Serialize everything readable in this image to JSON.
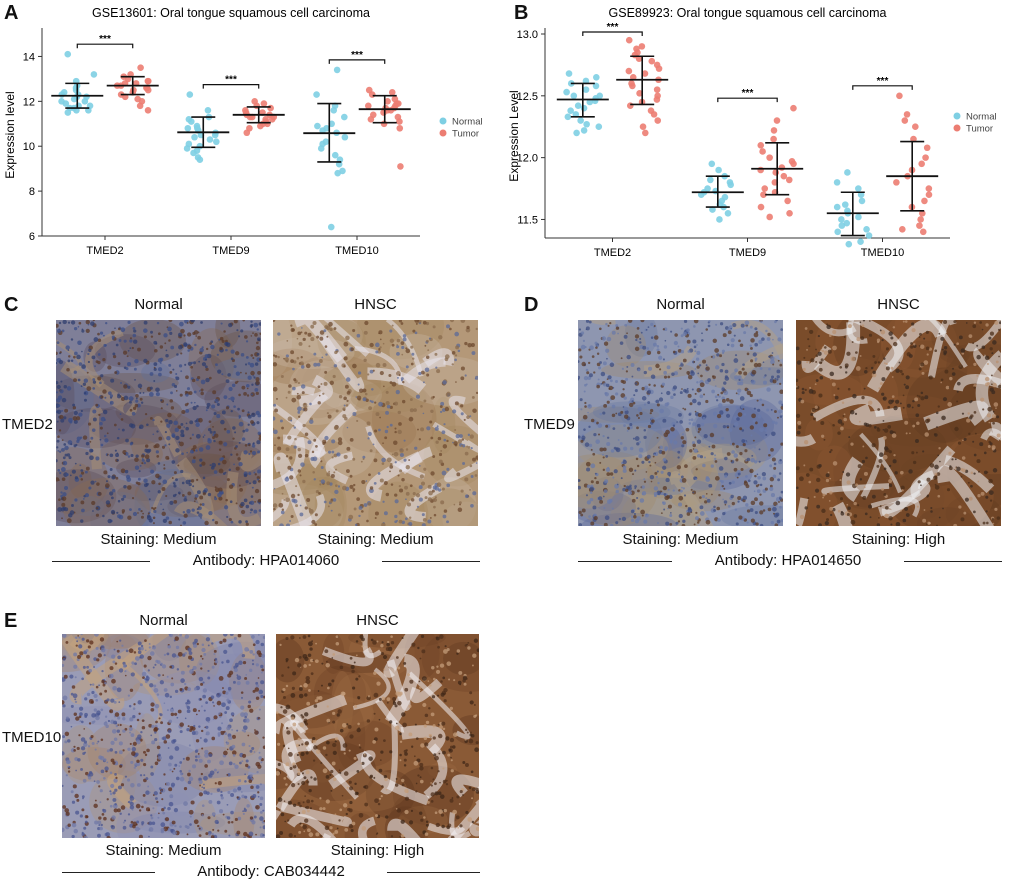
{
  "panels": {
    "A": {
      "letter": "A"
    },
    "B": {
      "letter": "B"
    },
    "C": {
      "letter": "C",
      "row_label": "TMED2",
      "col1": "Normal",
      "col2": "HNSC",
      "stain1": "Staining: Medium",
      "stain2": "Staining: Medium",
      "antibody": "Antibody: HPA014060"
    },
    "D": {
      "letter": "D",
      "row_label": "TMED9",
      "col1": "Normal",
      "col2": "HNSC",
      "stain1": "Staining: Medium",
      "stain2": "Staining: High",
      "antibody": "Antibody: HPA014650"
    },
    "E": {
      "letter": "E",
      "row_label": "TMED10",
      "col1": "Normal",
      "col2": "HNSC",
      "stain1": "Staining: Medium",
      "stain2": "Staining: High",
      "antibody": "Antibody: CAB034442"
    }
  },
  "colors": {
    "normal": "#7ecfe3",
    "tumor": "#ec7d72",
    "normal_tissue": "#8f96b4",
    "hnsc_tissue": "#8e5a33"
  },
  "chart_data": [
    {
      "type": "scatter",
      "title": "GSE13601: Oral tongue squamous cell carcinoma",
      "ylabel": "Expression level",
      "xlabel": "",
      "ylim": [
        6,
        15
      ],
      "yticks": [
        6,
        8,
        10,
        12,
        14
      ],
      "categories": [
        "TMED2",
        "TMED9",
        "TMED10"
      ],
      "legend": {
        "placement": "right",
        "entries": [
          "Normal",
          "Tumor"
        ]
      },
      "significance": [
        "***",
        "***",
        "***"
      ],
      "series": [
        {
          "name": "Normal",
          "color": "#7ecfe3",
          "mean": [
            12.25,
            10.62,
            10.58
          ],
          "sd_low": [
            11.7,
            9.95,
            9.3
          ],
          "sd_high": [
            12.8,
            11.3,
            11.9
          ],
          "points": [
            [
              14.1,
              13.2,
              12.9,
              12.7,
              12.6,
              12.5,
              12.4,
              12.3,
              12.3,
              12.2,
              12.2,
              12.1,
              12.0,
              12.0,
              11.9,
              11.8,
              11.8,
              11.7,
              11.7,
              11.6,
              11.6,
              11.5
            ],
            [
              12.3,
              11.6,
              11.3,
              11.2,
              11.1,
              10.9,
              10.8,
              10.8,
              10.7,
              10.6,
              10.5,
              10.5,
              10.4,
              10.3,
              10.2,
              10.1,
              10.0,
              9.9,
              9.8,
              9.7,
              9.5,
              9.4
            ],
            [
              13.4,
              12.3,
              11.8,
              11.6,
              11.3,
              11.0,
              10.9,
              10.8,
              10.7,
              10.6,
              10.4,
              10.2,
              10.1,
              9.9,
              9.6,
              9.4,
              9.2,
              8.9,
              8.8,
              6.4
            ]
          ]
        },
        {
          "name": "Tumor",
          "color": "#ec7d72",
          "mean": [
            12.7,
            11.4,
            11.65
          ],
          "sd_low": [
            12.3,
            11.05,
            11.05
          ],
          "sd_high": [
            13.1,
            11.75,
            12.25
          ],
          "points": [
            [
              13.5,
              13.2,
              13.1,
              13.0,
              12.9,
              12.9,
              12.8,
              12.8,
              12.7,
              12.7,
              12.6,
              12.6,
              12.5,
              12.5,
              12.4,
              12.3,
              12.2,
              12.1,
              12.0,
              11.8,
              11.6
            ],
            [
              12.0,
              11.9,
              11.8,
              11.7,
              11.6,
              11.5,
              11.5,
              11.4,
              11.4,
              11.3,
              11.3,
              11.3,
              11.2,
              11.2,
              11.1,
              11.0,
              11.0,
              10.9,
              10.8,
              10.6
            ],
            [
              12.5,
              12.4,
              12.3,
              12.1,
              12.0,
              11.9,
              11.9,
              11.8,
              11.8,
              11.7,
              11.7,
              11.6,
              11.6,
              11.5,
              11.4,
              11.3,
              11.2,
              11.1,
              11.0,
              10.8,
              9.1
            ]
          ]
        }
      ]
    },
    {
      "type": "scatter",
      "title": "GSE89923: Oral tongue squamous cell carcinoma",
      "ylabel": "Expression Level",
      "xlabel": "",
      "ylim": [
        11.35,
        13.0
      ],
      "yticks": [
        11.5,
        12.0,
        12.5,
        13.0
      ],
      "categories": [
        "TMED2",
        "TMED9",
        "TMED10"
      ],
      "legend": {
        "placement": "right",
        "entries": [
          "Normal",
          "Tumor"
        ]
      },
      "significance": [
        "***",
        "***",
        "***"
      ],
      "series": [
        {
          "name": "Normal",
          "color": "#7ecfe3",
          "mean": [
            12.47,
            11.72,
            11.55
          ],
          "sd_low": [
            12.33,
            11.6,
            11.37
          ],
          "sd_high": [
            12.6,
            11.85,
            11.72
          ],
          "points": [
            [
              12.68,
              12.65,
              12.62,
              12.6,
              12.58,
              12.55,
              12.53,
              12.5,
              12.5,
              12.48,
              12.46,
              12.45,
              12.42,
              12.4,
              12.38,
              12.35,
              12.33,
              12.3,
              12.27,
              12.25,
              12.22,
              12.2
            ],
            [
              11.95,
              11.9,
              11.85,
              11.82,
              11.8,
              11.78,
              11.75,
              11.73,
              11.72,
              11.7,
              11.68,
              11.65,
              11.62,
              11.6,
              11.58,
              11.55,
              11.5
            ],
            [
              11.88,
              11.8,
              11.75,
              11.7,
              11.65,
              11.62,
              11.6,
              11.57,
              11.55,
              11.52,
              11.5,
              11.47,
              11.45,
              11.42,
              11.4,
              11.37,
              11.32,
              11.3
            ]
          ]
        },
        {
          "name": "Tumor",
          "color": "#ec7d72",
          "mean": [
            12.63,
            11.91,
            11.85
          ],
          "sd_low": [
            12.43,
            11.7,
            11.57
          ],
          "sd_high": [
            12.82,
            12.12,
            12.13
          ],
          "points": [
            [
              12.95,
              12.9,
              12.88,
              12.85,
              12.83,
              12.8,
              12.78,
              12.75,
              12.72,
              12.7,
              12.68,
              12.65,
              12.63,
              12.6,
              12.58,
              12.55,
              12.52,
              12.5,
              12.47,
              12.45,
              12.42,
              12.38,
              12.35,
              12.3,
              12.25,
              12.2
            ],
            [
              12.4,
              12.3,
              12.22,
              12.15,
              12.1,
              12.05,
              12.0,
              11.97,
              11.95,
              11.92,
              11.9,
              11.88,
              11.85,
              11.82,
              11.8,
              11.75,
              11.72,
              11.7,
              11.65,
              11.6,
              11.55,
              11.52
            ],
            [
              12.5,
              12.35,
              12.3,
              12.25,
              12.15,
              12.08,
              12.0,
              11.95,
              11.9,
              11.85,
              11.8,
              11.75,
              11.7,
              11.65,
              11.6,
              11.55,
              11.5,
              11.45,
              11.42,
              11.4
            ]
          ]
        }
      ]
    }
  ]
}
